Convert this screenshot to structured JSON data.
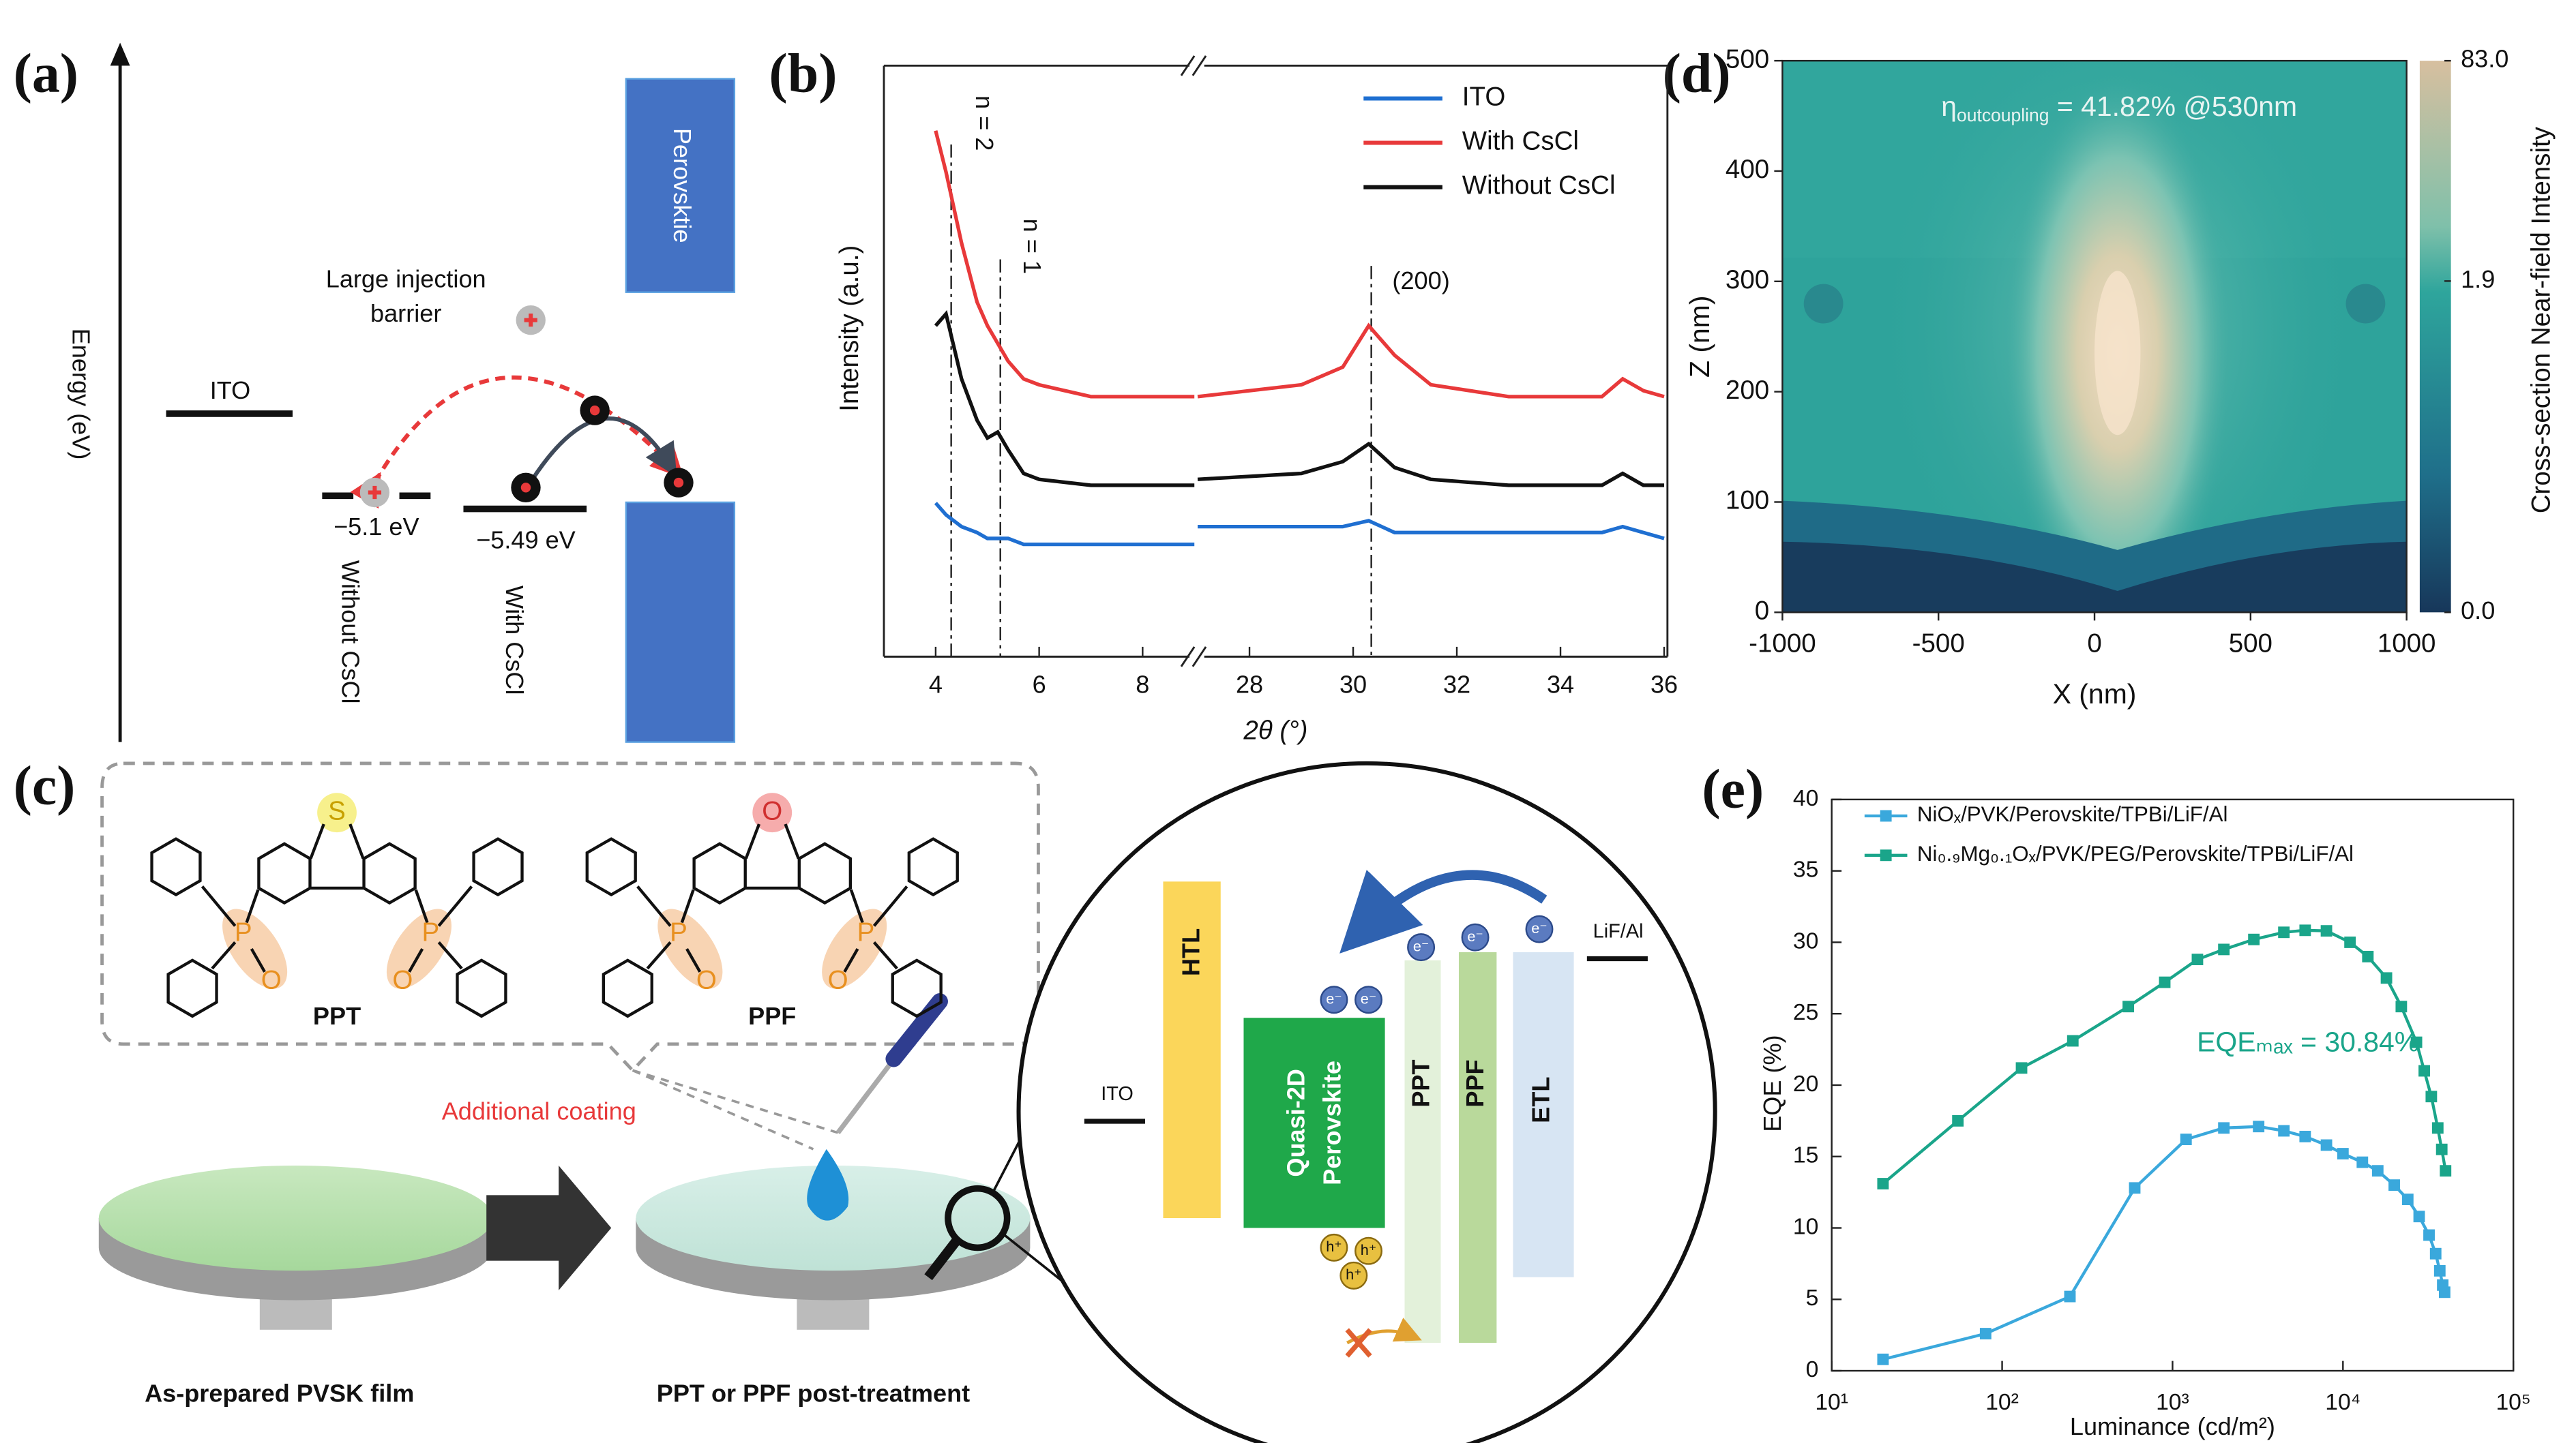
{
  "panel_labels": [
    "(a)",
    "(b)",
    "(c)",
    "(d)",
    "(e)"
  ],
  "panel_a": {
    "axis_label": "Energy (eV)",
    "perovskite": "Perovsktie",
    "barrier": [
      "Large injection",
      "barrier"
    ],
    "ito": "ITO",
    "level_without": "−5.1 eV",
    "level_with": "−5.49 eV",
    "without": "Without CsCl",
    "with": "With CsCl"
  },
  "panel_c": {
    "molecules": [
      {
        "heteroatom": "S",
        "name": "PPT",
        "atoms": [
          "P",
          "O",
          "O",
          "P"
        ]
      },
      {
        "heteroatom": "O",
        "name": "PPF",
        "atoms": [
          "P",
          "O",
          "O",
          "P"
        ]
      }
    ],
    "coating": "Additional coating",
    "film_left": "As-prepared PVSK film",
    "film_right": "PPT or PPF post-treatment",
    "device": {
      "ito": "ITO",
      "htl": "HTL",
      "emitter": [
        "Quasi-2D",
        "Perovskite"
      ],
      "ppt": "PPT",
      "ppf": "PPF",
      "etl": "ETL",
      "cathode": "LiF/Al",
      "electron": "e⁻",
      "hole": "h⁺"
    }
  },
  "chart_data": [
    {
      "type": "line",
      "xlabel": "2θ (°)",
      "ylabel": "Intensity (a.u.)",
      "xlim": [
        3,
        36
      ],
      "xbreak": [
        9,
        27
      ],
      "ylim": [
        0,
        100
      ],
      "xticks": [
        4,
        6,
        8,
        28,
        30,
        32,
        34,
        36
      ],
      "x": [
        4.0,
        4.2,
        4.5,
        4.8,
        5.0,
        5.2,
        5.4,
        5.7,
        6.0,
        7.0,
        9.0,
        27,
        29,
        29.8,
        30.3,
        30.8,
        31.5,
        33,
        34.8,
        35.2,
        35.6,
        36
      ],
      "series": [
        {
          "name": "ITO",
          "color": "#1f6fd1",
          "values": [
            26,
            24,
            22,
            21,
            20,
            20,
            20,
            19,
            19,
            19,
            19,
            22,
            22,
            22,
            23,
            21,
            21,
            21,
            21,
            22,
            21,
            20
          ]
        },
        {
          "name": "With CsCl",
          "color": "#e8393a",
          "values": [
            89,
            82,
            70,
            60,
            56,
            53,
            50,
            47,
            46,
            44,
            44,
            44,
            46,
            49,
            56,
            51,
            46,
            44,
            44,
            47,
            45,
            44
          ]
        },
        {
          "name": "Without CsCl",
          "color": "#111111",
          "values": [
            56,
            58,
            47,
            40,
            37,
            38,
            35,
            31,
            30,
            29,
            29,
            30,
            31,
            33,
            36,
            32,
            30,
            29,
            29,
            31,
            29,
            29
          ]
        }
      ],
      "annotations": [
        {
          "text": "n = 2",
          "x": 4.3
        },
        {
          "text": "n = 1",
          "x": 5.25
        },
        {
          "text": "(200)",
          "x": 30.35
        }
      ]
    },
    {
      "type": "heatmap",
      "xlabel": "X (nm)",
      "ylabel": "Z (nm)",
      "xlim": [
        -1000,
        1000
      ],
      "ylim": [
        0,
        500
      ],
      "xticks": [
        -1000,
        -500,
        0,
        500,
        1000
      ],
      "yticks": [
        0,
        100,
        200,
        300,
        400,
        500
      ],
      "colorbar": {
        "label": "Cross-section Near-field Intensity",
        "ticks": [
          {
            "value": 0,
            "label": "0.0"
          },
          {
            "value": 1.9,
            "label": "1.9"
          },
          {
            "value": 83,
            "label": "83.0"
          }
        ]
      },
      "annotation": {
        "symbol": "η",
        "subscript": "outcoupling",
        "text": " = 41.82% @530nm"
      }
    },
    {
      "type": "line",
      "xlabel": "Luminance (cd/m²)",
      "ylabel": "EQE (%)",
      "log_x": true,
      "xlim": [
        10,
        100000
      ],
      "ylim": [
        0,
        40
      ],
      "xticks": [
        {
          "value": 10,
          "label": "10¹"
        },
        {
          "value": 100,
          "label": "10²"
        },
        {
          "value": 1000,
          "label": "10³"
        },
        {
          "value": 10000,
          "label": "10⁴"
        },
        {
          "value": 100000,
          "label": "10⁵"
        }
      ],
      "yticks": [
        0,
        5,
        10,
        15,
        20,
        25,
        30,
        35,
        40
      ],
      "legend": "upper left",
      "series": [
        {
          "name": "NiOₓ/PVK/Perovskite/TPBi/LiF/Al",
          "color": "#3aa8dc",
          "x": [
            20,
            80,
            250,
            600,
            1200,
            2000,
            3200,
            4500,
            6000,
            8000,
            10000,
            13000,
            16000,
            20000,
            24000,
            28000,
            32000,
            35000,
            37000,
            38500,
            39500
          ],
          "values": [
            0.8,
            2.6,
            5.2,
            12.8,
            16.2,
            17.0,
            17.1,
            16.8,
            16.4,
            15.8,
            15.2,
            14.6,
            14.0,
            13.0,
            12.0,
            10.8,
            9.5,
            8.2,
            7.0,
            6.0,
            5.5
          ]
        },
        {
          "name": "Ni₀.₉Mg₀.₁Oₓ/PVK/PEG/Perovskite/TPBi/LiF/Al",
          "color": "#1aa58a",
          "x": [
            20,
            55,
            130,
            260,
            550,
            900,
            1400,
            2000,
            3000,
            4500,
            6000,
            8000,
            11000,
            14000,
            18000,
            22000,
            27000,
            30000,
            33000,
            36000,
            38000,
            40000
          ],
          "values": [
            13.1,
            17.5,
            21.2,
            23.1,
            25.5,
            27.2,
            28.8,
            29.5,
            30.2,
            30.7,
            30.84,
            30.8,
            30.0,
            29.0,
            27.5,
            25.5,
            23.0,
            21.0,
            19.2,
            17.0,
            15.5,
            14.0
          ]
        }
      ],
      "annotation": "EQEₘₐₓ = 30.84%"
    }
  ]
}
